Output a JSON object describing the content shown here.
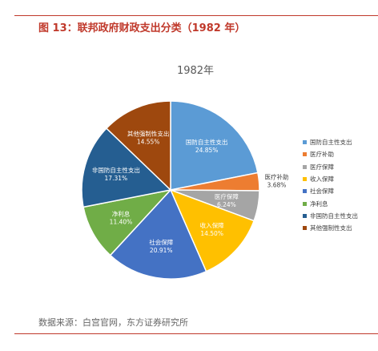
{
  "figure": {
    "title": "图 13：联邦政府财政支出分类（1982 年）",
    "source": "数据来源：白宫官网，东方证券研究所"
  },
  "chart_data": {
    "type": "pie",
    "title": "1982年",
    "legend_position": "right",
    "unit": "%",
    "slices": [
      {
        "label": "国防自主性支出",
        "value": 24.85,
        "value_label": "24.85%",
        "color": "#5b9bd5",
        "label_color": "#ffffff"
      },
      {
        "label": "医疗补助",
        "value": 3.68,
        "value_label": "3.68%",
        "color": "#ed7d31",
        "label_color": "#404040"
      },
      {
        "label": "医疗保障",
        "value": 6.24,
        "value_label": "6.24%",
        "color": "#a5a5a5",
        "label_color": "#ffffff"
      },
      {
        "label": "收入保障",
        "value": 14.5,
        "value_label": "14.50%",
        "color": "#ffc000",
        "label_color": "#ffffff"
      },
      {
        "label": "社会保障",
        "value": 20.91,
        "value_label": "20.91%",
        "color": "#4472c4",
        "label_color": "#ffffff"
      },
      {
        "label": "净利息",
        "value": 11.4,
        "value_label": "11.40%",
        "color": "#70ad47",
        "label_color": "#ffffff"
      },
      {
        "label": "非国防自主性支出",
        "value": 17.31,
        "value_label": "17.31%",
        "color": "#255e91",
        "label_color": "#ffffff"
      },
      {
        "label": "其他强制性支出",
        "value": 14.55,
        "value_label": "14.55%",
        "color": "#9e480e",
        "label_color": "#ffffff"
      }
    ]
  }
}
